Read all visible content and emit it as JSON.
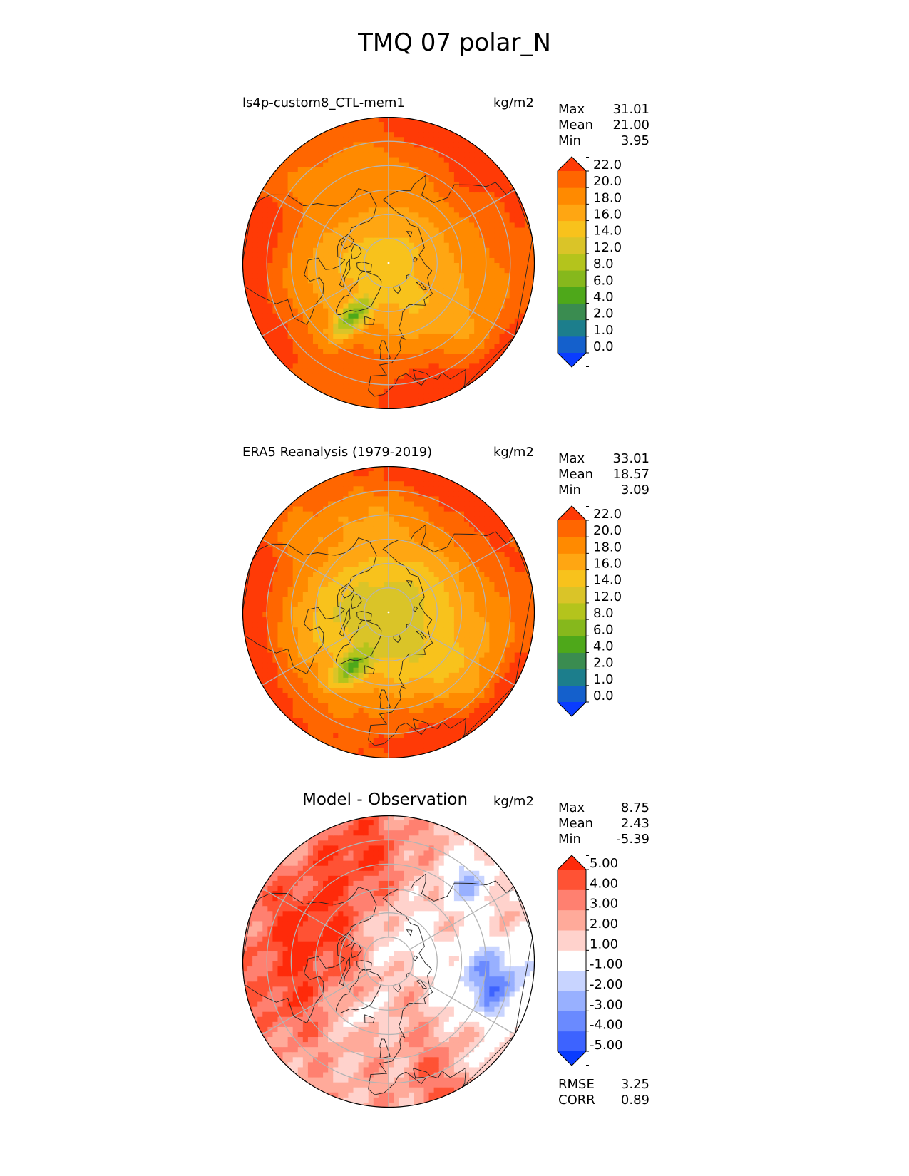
{
  "figure": {
    "title": "TMQ 07 polar_N"
  },
  "colors": {
    "abs_levels": [
      "#0a3cff",
      "#1460cc",
      "#1c7e8c",
      "#3a8c50",
      "#4ea81a",
      "#86b81c",
      "#b4c41c",
      "#dac428",
      "#f8c21c",
      "#ffa612",
      "#ff8a00",
      "#ff6600",
      "#ff3a06"
    ],
    "diff_levels": [
      "#0a3cff",
      "#3d63ff",
      "#6a8aff",
      "#98b0ff",
      "#c8d4ff",
      "#ffffff",
      "#ffd2cc",
      "#ffaa9a",
      "#ff8070",
      "#ff5234",
      "#ff2a0a"
    ],
    "land_outline": "#222222",
    "grid": "#b4b4b4"
  },
  "chart_data": [
    {
      "type": "heatmap",
      "projection": "north-polar-stereographic",
      "title": "ls4p-custom8_CTL-mem1",
      "units": "kg/m2",
      "stats": [
        {
          "label": "Max",
          "value": "31.01"
        },
        {
          "label": "Mean",
          "value": "21.00"
        },
        {
          "label": "Min",
          "value": "3.95"
        }
      ],
      "colorbar": {
        "levels": [
          "0.0",
          "1.0",
          "2.0",
          "4.0",
          "6.0",
          "8.0",
          "12.0",
          "14.0",
          "16.0",
          "18.0",
          "20.0",
          "22.0"
        ],
        "extend": "both"
      },
      "field": {
        "pole_value": 15,
        "rim_value": 22.5,
        "greenland_min": 4,
        "style": "model"
      }
    },
    {
      "type": "heatmap",
      "projection": "north-polar-stereographic",
      "title": "ERA5 Reanalysis (1979-2019)",
      "units": "kg/m2",
      "stats": [
        {
          "label": "Max",
          "value": "33.01"
        },
        {
          "label": "Mean",
          "value": "18.57"
        },
        {
          "label": "Min",
          "value": "3.09"
        }
      ],
      "colorbar": {
        "levels": [
          "0.0",
          "1.0",
          "2.0",
          "4.0",
          "6.0",
          "8.0",
          "12.0",
          "14.0",
          "16.0",
          "18.0",
          "20.0",
          "22.0"
        ],
        "extend": "both"
      },
      "field": {
        "pole_value": 13,
        "rim_value": 22.5,
        "greenland_min": 3.5,
        "style": "obs"
      }
    },
    {
      "type": "heatmap",
      "projection": "north-polar-stereographic",
      "title": "Model - Observation",
      "units": "kg/m2",
      "stats": [
        {
          "label": "Max",
          "value": "8.75"
        },
        {
          "label": "Mean",
          "value": "2.43"
        },
        {
          "label": "Min",
          "value": "-5.39"
        }
      ],
      "colorbar": {
        "levels": [
          "-5.00",
          "-4.00",
          "-3.00",
          "-2.00",
          "-1.00",
          "1.00",
          "2.00",
          "3.00",
          "4.00",
          "5.00"
        ],
        "extend": "both"
      },
      "metrics": [
        {
          "label": "RMSE",
          "value": "3.25"
        },
        {
          "label": "CORR",
          "value": "0.89"
        }
      ],
      "field": {
        "style": "diff"
      }
    }
  ]
}
